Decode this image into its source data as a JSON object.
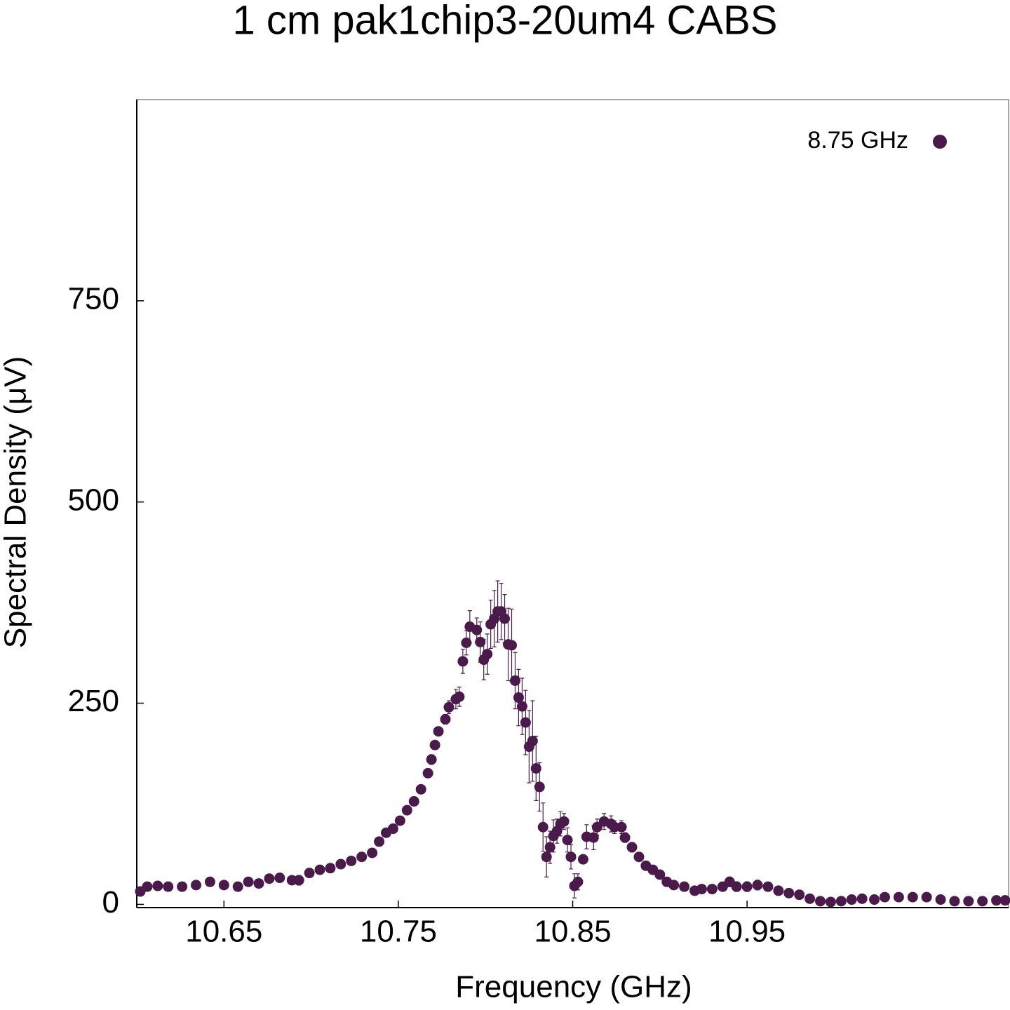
{
  "chart_data": {
    "type": "scatter",
    "title": "1 cm pak1chip3-20um4 CABS",
    "x_label": "Frequency (GHz)",
    "y_label": "Spectral Density (μV)",
    "xlim": [
      10.6,
      11.1
    ],
    "xticks": [
      10.65,
      10.75,
      10.85,
      10.95
    ],
    "ylim": [
      -4,
      1000
    ],
    "yticks": [
      0,
      250,
      500,
      750
    ],
    "legend": "top-right",
    "series": [
      {
        "name": "8.75 GHz",
        "color": "#4a1a4a",
        "x": [
          10.602,
          10.606,
          10.612,
          10.618,
          10.626,
          10.634,
          10.642,
          10.65,
          10.658,
          10.664,
          10.67,
          10.676,
          10.682,
          10.689,
          10.693,
          10.699,
          10.705,
          10.711,
          10.717,
          10.723,
          10.729,
          10.735,
          10.739,
          10.743,
          10.747,
          10.751,
          10.755,
          10.759,
          10.763,
          10.767,
          10.769,
          10.771,
          10.773,
          10.777,
          10.779,
          10.783,
          10.785,
          10.787,
          10.789,
          10.791,
          10.795,
          10.797,
          10.799,
          10.801,
          10.803,
          10.805,
          10.807,
          10.809,
          10.811,
          10.813,
          10.815,
          10.817,
          10.819,
          10.821,
          10.823,
          10.825,
          10.827,
          10.829,
          10.831,
          10.833,
          10.835,
          10.837,
          10.839,
          10.841,
          10.843,
          10.845,
          10.847,
          10.849,
          10.851,
          10.853,
          10.856,
          10.858,
          10.862,
          10.864,
          10.868,
          10.872,
          10.874,
          10.878,
          10.88,
          10.884,
          10.888,
          10.892,
          10.896,
          10.9,
          10.904,
          10.908,
          10.914,
          10.92,
          10.924,
          10.93,
          10.936,
          10.94,
          10.944,
          10.95,
          10.956,
          10.962,
          10.968,
          10.974,
          10.98,
          10.986,
          10.992,
          10.998,
          11.004,
          11.01,
          11.016,
          11.023,
          11.029,
          11.037,
          11.045,
          11.053,
          11.061,
          11.069,
          11.077,
          11.085,
          11.093,
          11.098
        ],
        "values": [
          16,
          22,
          23,
          22,
          22,
          24,
          28,
          24,
          22,
          28,
          26,
          32,
          33,
          30,
          30,
          39,
          43,
          45,
          50,
          54,
          59,
          64,
          78,
          89,
          94,
          104,
          117,
          128,
          143,
          163,
          180,
          198,
          215,
          230,
          245,
          255,
          258,
          302,
          325,
          345,
          341,
          326,
          304,
          311,
          348,
          355,
          364,
          364,
          355,
          323,
          322,
          278,
          257,
          246,
          226,
          196,
          203,
          169,
          146,
          96,
          59,
          71,
          85,
          91,
          100,
          103,
          80,
          59,
          23,
          28,
          56,
          84,
          83,
          96,
          103,
          100,
          96,
          96,
          83,
          71,
          59,
          48,
          43,
          37,
          28,
          24,
          22,
          17,
          19,
          19,
          22,
          28,
          22,
          22,
          24,
          22,
          17,
          14,
          12,
          7,
          4,
          3,
          4,
          6,
          7,
          6,
          9,
          9,
          9,
          9,
          6,
          4,
          4,
          4,
          5,
          5
        ],
        "errors": [
          4,
          4,
          4,
          4,
          4,
          4,
          4,
          4,
          4,
          4,
          4,
          4,
          4,
          4,
          6,
          4,
          4,
          4,
          4,
          4,
          4,
          4,
          4,
          4,
          4,
          4,
          4,
          4,
          4,
          4,
          6,
          4,
          4,
          6,
          8,
          12,
          12,
          15,
          15,
          20,
          15,
          25,
          25,
          25,
          30,
          35,
          38,
          35,
          30,
          45,
          45,
          35,
          35,
          35,
          40,
          45,
          50,
          40,
          30,
          30,
          25,
          20,
          20,
          15,
          15,
          10,
          15,
          15,
          15,
          10,
          5,
          15,
          15,
          10,
          10,
          10,
          8,
          8,
          6,
          6,
          5,
          5,
          5,
          5,
          5,
          4,
          4,
          4,
          4,
          4,
          4,
          6,
          6,
          6,
          6,
          4,
          4,
          4,
          4,
          4,
          4,
          4,
          4,
          4,
          4,
          4,
          4,
          4,
          4,
          4,
          4,
          4,
          4,
          4,
          4,
          4
        ]
      }
    ]
  }
}
